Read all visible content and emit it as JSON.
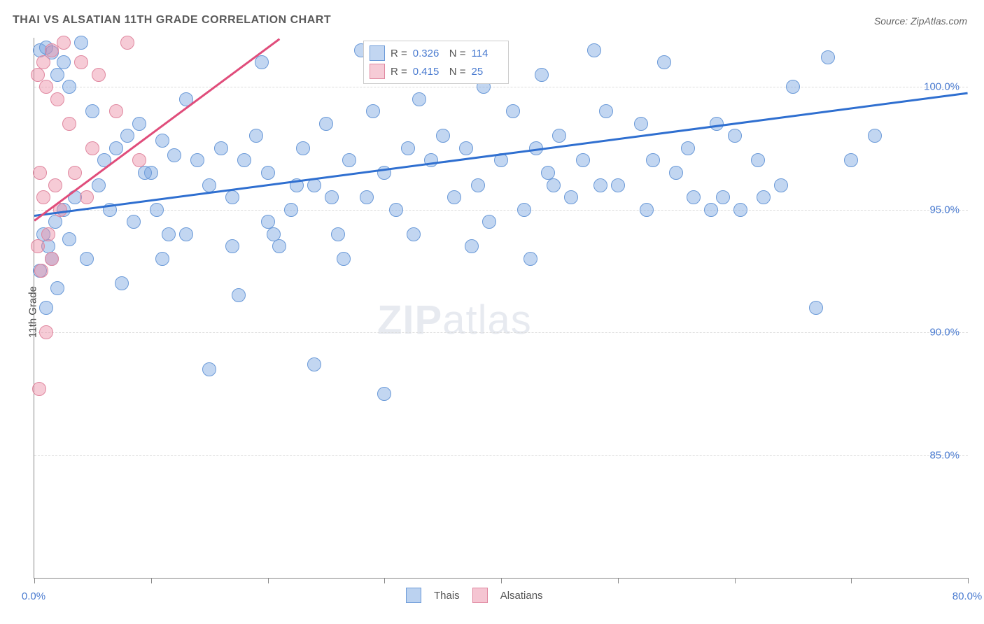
{
  "title": "THAI VS ALSATIAN 11TH GRADE CORRELATION CHART",
  "source": "Source: ZipAtlas.com",
  "ylabel": "11th Grade",
  "watermark_a": "ZIP",
  "watermark_b": "atlas",
  "chart": {
    "type": "scatter",
    "xlim": [
      0,
      80
    ],
    "ylim": [
      80,
      102
    ],
    "xtick_positions": [
      0,
      10,
      20,
      30,
      40,
      50,
      60,
      70,
      80
    ],
    "xtick_labels": {
      "0": "0.0%",
      "80": "80.0%"
    },
    "yticks": [
      85.0,
      90.0,
      95.0,
      100.0
    ],
    "ytick_labels": [
      "85.0%",
      "90.0%",
      "95.0%",
      "100.0%"
    ],
    "grid_color": "#dcdcdc",
    "axis_color": "#888888",
    "background_color": "#ffffff",
    "point_radius": 9,
    "series": [
      {
        "name": "Thais",
        "color_fill": "rgba(120,165,225,0.45)",
        "color_stroke": "#6b9ad8",
        "trend_color": "#2f6fd0",
        "trend": {
          "x1": 0,
          "y1": 94.8,
          "x2": 80,
          "y2": 99.8
        },
        "R": "0.326",
        "N": "114",
        "points": [
          [
            0.5,
            101.5
          ],
          [
            1.0,
            101.6
          ],
          [
            1.5,
            101.4
          ],
          [
            2.0,
            100.5
          ],
          [
            2.5,
            101.0
          ],
          [
            3.0,
            100.0
          ],
          [
            4.0,
            101.8
          ],
          [
            5.0,
            99.0
          ],
          [
            6.0,
            97.0
          ],
          [
            7.0,
            97.5
          ],
          [
            8.0,
            98.0
          ],
          [
            9.0,
            98.5
          ],
          [
            10.0,
            96.5
          ],
          [
            11.0,
            97.8
          ],
          [
            12.0,
            97.2
          ],
          [
            13.0,
            99.5
          ],
          [
            14.0,
            97.0
          ],
          [
            15.0,
            96.0
          ],
          [
            16.0,
            97.5
          ],
          [
            17.0,
            95.5
          ],
          [
            18.0,
            97.0
          ],
          [
            19.0,
            98.0
          ],
          [
            19.5,
            101.0
          ],
          [
            20.0,
            94.5
          ],
          [
            21.0,
            93.5
          ],
          [
            22.0,
            95.0
          ],
          [
            23.0,
            97.5
          ],
          [
            24.0,
            96.0
          ],
          [
            25.0,
            98.5
          ],
          [
            26.0,
            94.0
          ],
          [
            27.0,
            97.0
          ],
          [
            28.0,
            101.5
          ],
          [
            29.0,
            99.0
          ],
          [
            30.0,
            96.5
          ],
          [
            30.5,
            100.5
          ],
          [
            31.0,
            95.0
          ],
          [
            32.0,
            97.5
          ],
          [
            33.0,
            99.5
          ],
          [
            34.0,
            97.0
          ],
          [
            35.0,
            98.0
          ],
          [
            35.5,
            101.0
          ],
          [
            36.0,
            95.5
          ],
          [
            37.0,
            97.5
          ],
          [
            38.0,
            96.0
          ],
          [
            38.5,
            100.0
          ],
          [
            39.0,
            94.5
          ],
          [
            40.0,
            97.0
          ],
          [
            41.0,
            99.0
          ],
          [
            42.0,
            95.0
          ],
          [
            43.0,
            97.5
          ],
          [
            43.5,
            100.5
          ],
          [
            44.0,
            96.5
          ],
          [
            45.0,
            98.0
          ],
          [
            46.0,
            95.5
          ],
          [
            47.0,
            97.0
          ],
          [
            48.0,
            101.5
          ],
          [
            49.0,
            99.0
          ],
          [
            50.0,
            96.0
          ],
          [
            52.0,
            98.5
          ],
          [
            53.0,
            97.0
          ],
          [
            54.0,
            101.0
          ],
          [
            55.0,
            96.5
          ],
          [
            56.0,
            97.5
          ],
          [
            58.0,
            95.0
          ],
          [
            59.0,
            95.5
          ],
          [
            60.0,
            98.0
          ],
          [
            62.0,
            97.0
          ],
          [
            64.0,
            96.0
          ],
          [
            65.0,
            100.0
          ],
          [
            68.0,
            101.2
          ],
          [
            70.0,
            97.0
          ],
          [
            72.0,
            98.0
          ],
          [
            0.8,
            94.0
          ],
          [
            1.2,
            93.5
          ],
          [
            1.5,
            93.0
          ],
          [
            2.0,
            91.8
          ],
          [
            1.0,
            91.0
          ],
          [
            0.5,
            92.5
          ],
          [
            1.8,
            94.5
          ],
          [
            2.5,
            95.0
          ],
          [
            3.0,
            93.8
          ],
          [
            3.5,
            95.5
          ],
          [
            4.5,
            93.0
          ],
          [
            5.5,
            96.0
          ],
          [
            6.5,
            95.0
          ],
          [
            7.5,
            92.0
          ],
          [
            8.5,
            94.5
          ],
          [
            9.5,
            96.5
          ],
          [
            10.5,
            95.0
          ],
          [
            11.5,
            94.0
          ],
          [
            15.0,
            88.5
          ],
          [
            24.0,
            88.7
          ],
          [
            30.0,
            87.5
          ],
          [
            11.0,
            93.0
          ],
          [
            13.0,
            94.0
          ],
          [
            17.0,
            93.5
          ],
          [
            20.5,
            94.0
          ],
          [
            22.5,
            96.0
          ],
          [
            26.5,
            93.0
          ],
          [
            44.5,
            96.0
          ],
          [
            48.5,
            96.0
          ],
          [
            56.5,
            95.5
          ],
          [
            60.5,
            95.0
          ],
          [
            67.0,
            91.0
          ],
          [
            17.5,
            91.5
          ],
          [
            20.0,
            96.5
          ],
          [
            25.5,
            95.5
          ],
          [
            28.5,
            95.5
          ],
          [
            32.5,
            94.0
          ],
          [
            37.5,
            93.5
          ],
          [
            42.5,
            93.0
          ],
          [
            52.5,
            95.0
          ],
          [
            58.5,
            98.5
          ],
          [
            62.5,
            95.5
          ]
        ]
      },
      {
        "name": "Alsatians",
        "color_fill": "rgba(235,140,165,0.45)",
        "color_stroke": "#e088a0",
        "trend_color": "#e04d7b",
        "trend": {
          "x1": 0,
          "y1": 94.6,
          "x2": 21,
          "y2": 102.0
        },
        "R": "0.415",
        "N": "25",
        "points": [
          [
            0.3,
            100.5
          ],
          [
            0.8,
            101.0
          ],
          [
            1.0,
            100.0
          ],
          [
            1.5,
            101.5
          ],
          [
            2.0,
            99.5
          ],
          [
            2.5,
            101.8
          ],
          [
            3.0,
            98.5
          ],
          [
            4.0,
            101.0
          ],
          [
            5.0,
            97.5
          ],
          [
            5.5,
            100.5
          ],
          [
            7.0,
            99.0
          ],
          [
            8.0,
            101.8
          ],
          [
            9.0,
            97.0
          ],
          [
            0.5,
            96.5
          ],
          [
            0.8,
            95.5
          ],
          [
            1.2,
            94.0
          ],
          [
            1.5,
            93.0
          ],
          [
            0.3,
            93.5
          ],
          [
            0.6,
            92.5
          ],
          [
            1.8,
            96.0
          ],
          [
            2.2,
            95.0
          ],
          [
            3.5,
            96.5
          ],
          [
            4.5,
            95.5
          ],
          [
            1.0,
            90.0
          ],
          [
            0.4,
            87.7
          ]
        ]
      }
    ],
    "bottom_legend": [
      {
        "label": "Thais",
        "fill": "rgba(120,165,225,0.5)",
        "stroke": "#6b9ad8"
      },
      {
        "label": "Alsatians",
        "fill": "rgba(235,140,165,0.5)",
        "stroke": "#e088a0"
      }
    ]
  }
}
